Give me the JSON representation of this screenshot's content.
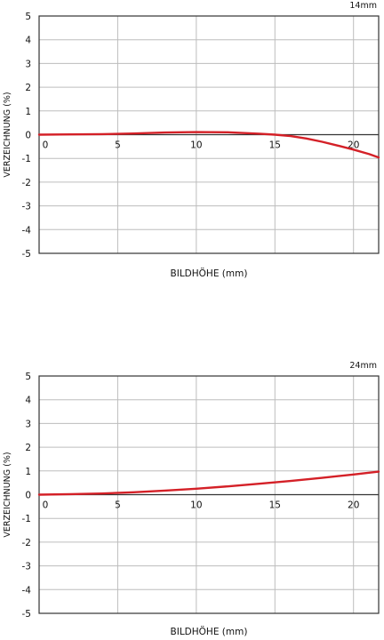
{
  "chart_data": [
    {
      "type": "line",
      "title": "14mm",
      "xlabel": "BILDHÖHE (mm)",
      "ylabel": "VERZEICHNUNG (%)",
      "xlim": [
        0,
        21.6
      ],
      "ylim": [
        -5,
        5
      ],
      "x_ticks": [
        0,
        5,
        10,
        15,
        20
      ],
      "y_ticks": [
        5,
        4,
        3,
        2,
        1,
        0,
        -1,
        -2,
        -3,
        -4,
        -5
      ],
      "grid": true,
      "colors": {
        "line": "#d42027",
        "grid": "#bdbdbd",
        "axis": "#333333"
      },
      "series": [
        {
          "x": [
            0,
            2,
            4,
            6,
            8,
            10,
            12,
            14,
            15,
            16,
            17,
            18,
            19,
            20,
            21,
            21.6
          ],
          "y": [
            0,
            0.01,
            0.02,
            0.05,
            0.09,
            0.11,
            0.1,
            0.04,
            0.0,
            -0.06,
            -0.16,
            -0.3,
            -0.46,
            -0.63,
            -0.82,
            -0.96
          ]
        }
      ]
    },
    {
      "type": "line",
      "title": "24mm",
      "xlabel": "BILDHÖHE (mm)",
      "ylabel": "VERZEICHNUNG (%)",
      "xlim": [
        0,
        21.6
      ],
      "ylim": [
        -5,
        5
      ],
      "x_ticks": [
        0,
        5,
        10,
        15,
        20
      ],
      "y_ticks": [
        5,
        4,
        3,
        2,
        1,
        0,
        -1,
        -2,
        -3,
        -4,
        -5
      ],
      "grid": true,
      "colors": {
        "line": "#d42027",
        "grid": "#bdbdbd",
        "axis": "#333333"
      },
      "series": [
        {
          "x": [
            0,
            2,
            4,
            6,
            8,
            10,
            12,
            14,
            16,
            18,
            20,
            21.6
          ],
          "y": [
            0,
            0.02,
            0.05,
            0.1,
            0.17,
            0.25,
            0.35,
            0.46,
            0.58,
            0.71,
            0.85,
            0.97
          ]
        }
      ]
    }
  ]
}
